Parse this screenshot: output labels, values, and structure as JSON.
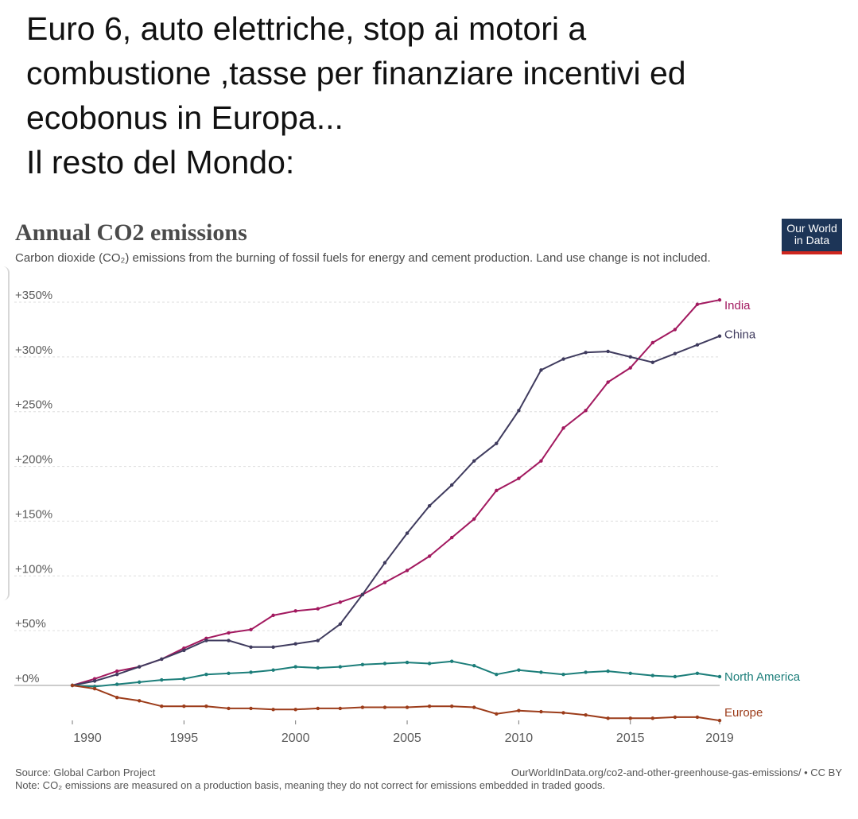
{
  "post": {
    "lines": [
      "Euro 6, auto elettriche, stop ai motori a",
      "combustione ,tasse per finanziare incentivi ed",
      "ecobonus in Europa...",
      "Il resto del Mondo:"
    ]
  },
  "logo": {
    "line1": "Our World",
    "line2": "in Data",
    "bg_color": "#1d3557",
    "accent_color": "#ce261e"
  },
  "chart_data": {
    "type": "line",
    "title": "Annual CO2 emissions",
    "subtitle": "Carbon dioxide (CO₂) emissions from the burning of fossil fuels for energy and cement production. Land use change is not included.",
    "xlim": [
      1990,
      2019
    ],
    "ylim": [
      -16,
      350
    ],
    "y_ticks": [
      0,
      50,
      100,
      150,
      200,
      250,
      300,
      350
    ],
    "y_tick_labels": [
      "+0%",
      "+50%",
      "+100%",
      "+150%",
      "+200%",
      "+250%",
      "+300%",
      "+350%"
    ],
    "x_ticks": [
      1990,
      1995,
      2000,
      2005,
      2010,
      2015,
      2019
    ],
    "x_tick_labels": [
      "1990",
      "1995",
      "2000",
      "2005",
      "2010",
      "2015",
      "2019"
    ],
    "grid": true,
    "legend": "inline-right",
    "x": [
      1990,
      1991,
      1992,
      1993,
      1994,
      1995,
      1996,
      1997,
      1998,
      1999,
      2000,
      2001,
      2002,
      2003,
      2004,
      2005,
      2006,
      2007,
      2008,
      2009,
      2010,
      2011,
      2012,
      2013,
      2014,
      2015,
      2016,
      2017,
      2018,
      2019
    ],
    "series": [
      {
        "name": "India",
        "color": "#a2195f",
        "values": [
          0,
          6,
          13,
          17,
          24,
          34,
          43,
          48,
          51,
          64,
          68,
          70,
          76,
          83,
          94,
          105,
          118,
          135,
          152,
          178,
          189,
          205,
          235,
          251,
          277,
          290,
          313,
          325,
          348,
          352
        ]
      },
      {
        "name": "China",
        "color": "#3f3b5e",
        "values": [
          0,
          4,
          10,
          17,
          24,
          32,
          41,
          41,
          35,
          35,
          38,
          41,
          56,
          83,
          112,
          139,
          164,
          183,
          205,
          221,
          251,
          288,
          298,
          304,
          305,
          300,
          295,
          303,
          311,
          319
        ]
      },
      {
        "name": "North America",
        "color": "#1c7e7a",
        "values": [
          0,
          -1,
          1,
          3,
          5,
          6,
          10,
          11,
          12,
          14,
          17,
          16,
          17,
          19,
          20,
          21,
          20,
          22,
          18,
          10,
          14,
          12,
          10,
          12,
          13,
          11,
          9,
          8,
          11,
          8
        ]
      },
      {
        "name": "Europe",
        "color": "#9c3c1a",
        "values": [
          0,
          -3,
          -11,
          -14,
          -19,
          -19,
          -19,
          -21,
          -21,
          -22,
          -22,
          -21,
          -21,
          -20,
          -20,
          -20,
          -19,
          -19,
          -20,
          -26,
          -23,
          -24,
          -25,
          -27,
          -30,
          -30,
          -30,
          -29,
          -29,
          -32
        ]
      }
    ]
  },
  "footer": {
    "source": "Source: Global Carbon Project",
    "url": "OurWorldInData.org/co2-and-other-greenhouse-gas-emissions/ • CC BY",
    "note": "Note: CO₂ emissions are measured on a production basis, meaning they do not correct for emissions embedded in traded goods."
  }
}
